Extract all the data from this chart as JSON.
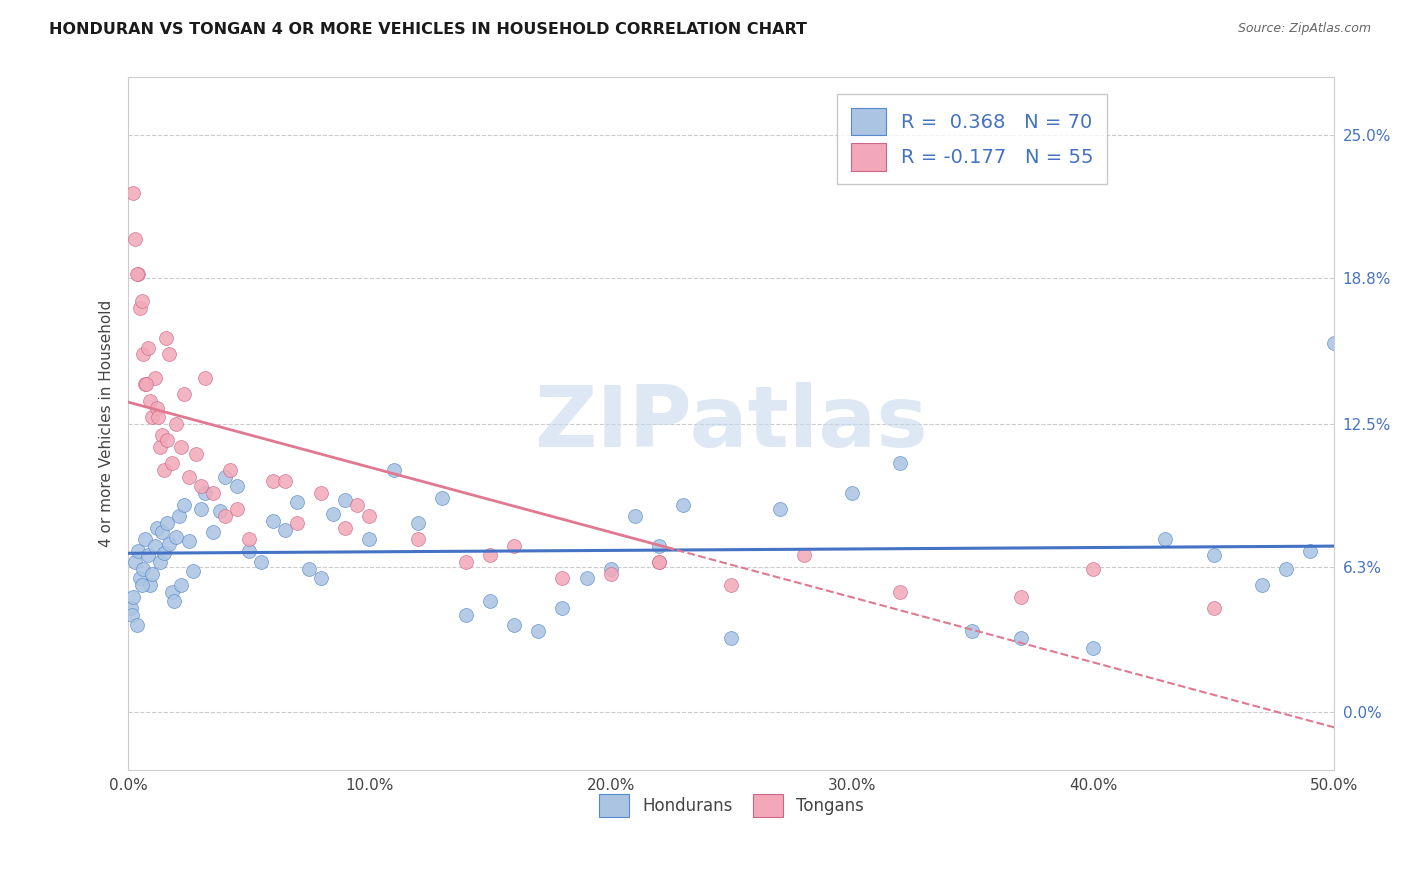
{
  "title": "HONDURAN VS TONGAN 4 OR MORE VEHICLES IN HOUSEHOLD CORRELATION CHART",
  "source": "Source: ZipAtlas.com",
  "ylabel": "4 or more Vehicles in Household",
  "xlabel_vals": [
    0.0,
    10.0,
    20.0,
    30.0,
    40.0,
    50.0
  ],
  "ylabel_vals": [
    0.0,
    6.3,
    12.5,
    18.8,
    25.0
  ],
  "ylabel_labels": [
    "0.0%",
    "6.3%",
    "12.5%",
    "18.8%",
    "25.0%"
  ],
  "xmin": 0.0,
  "xmax": 50.0,
  "ymin": -2.5,
  "ymax": 27.5,
  "honduran_color": "#aac4e2",
  "tongan_color": "#f2a8b8",
  "honduran_edge_color": "#5588cc",
  "tongan_edge_color": "#cc6688",
  "honduran_line_color": "#4472c4",
  "tongan_line_color": "#e07890",
  "background_color": "#ffffff",
  "grid_color": "#cccccc",
  "legend_text_1": "R =  0.368   N = 70",
  "legend_text_2": "R = -0.177   N = 55",
  "legend_color_1": "#4472c4",
  "legend_color_2": "#e07890",
  "watermark": "ZIPatlas",
  "watermark_color": "#c8d8ee",
  "honduran_x": [
    0.1,
    0.2,
    0.3,
    0.4,
    0.5,
    0.6,
    0.7,
    0.8,
    0.9,
    1.0,
    1.1,
    1.2,
    1.3,
    1.4,
    1.5,
    1.6,
    1.7,
    1.8,
    1.9,
    2.0,
    2.1,
    2.2,
    2.3,
    2.5,
    2.7,
    3.0,
    3.2,
    3.5,
    3.8,
    4.0,
    4.5,
    5.0,
    5.5,
    6.0,
    6.5,
    7.0,
    7.5,
    8.0,
    8.5,
    9.0,
    10.0,
    11.0,
    12.0,
    13.0,
    14.0,
    15.0,
    16.0,
    17.0,
    18.0,
    19.0,
    20.0,
    21.0,
    22.0,
    23.0,
    25.0,
    27.0,
    30.0,
    32.0,
    35.0,
    37.0,
    40.0,
    43.0,
    45.0,
    47.0,
    48.0,
    49.0,
    50.0,
    0.15,
    0.35,
    0.55
  ],
  "honduran_y": [
    4.5,
    5.0,
    6.5,
    7.0,
    5.8,
    6.2,
    7.5,
    6.8,
    5.5,
    6.0,
    7.2,
    8.0,
    6.5,
    7.8,
    6.9,
    8.2,
    7.3,
    5.2,
    4.8,
    7.6,
    8.5,
    5.5,
    9.0,
    7.4,
    6.1,
    8.8,
    9.5,
    7.8,
    8.7,
    10.2,
    9.8,
    7.0,
    6.5,
    8.3,
    7.9,
    9.1,
    6.2,
    5.8,
    8.6,
    9.2,
    7.5,
    10.5,
    8.2,
    9.3,
    4.2,
    4.8,
    3.8,
    3.5,
    4.5,
    5.8,
    6.2,
    8.5,
    7.2,
    9.0,
    3.2,
    8.8,
    9.5,
    10.8,
    3.5,
    3.2,
    2.8,
    7.5,
    6.8,
    5.5,
    6.2,
    7.0,
    16.0,
    4.2,
    3.8,
    5.5
  ],
  "tongan_x": [
    0.2,
    0.3,
    0.4,
    0.5,
    0.6,
    0.7,
    0.8,
    0.9,
    1.0,
    1.1,
    1.2,
    1.3,
    1.4,
    1.5,
    1.6,
    1.7,
    1.8,
    2.0,
    2.2,
    2.5,
    2.8,
    3.0,
    3.5,
    4.0,
    4.5,
    5.0,
    6.0,
    7.0,
    8.0,
    9.0,
    10.0,
    12.0,
    14.0,
    16.0,
    18.0,
    20.0,
    22.0,
    25.0,
    28.0,
    32.0,
    37.0,
    40.0,
    45.0,
    0.35,
    0.55,
    0.75,
    1.25,
    1.55,
    2.3,
    3.2,
    4.2,
    6.5,
    9.5,
    15.0,
    22.0
  ],
  "tongan_y": [
    22.5,
    20.5,
    19.0,
    17.5,
    15.5,
    14.2,
    15.8,
    13.5,
    12.8,
    14.5,
    13.2,
    11.5,
    12.0,
    10.5,
    11.8,
    15.5,
    10.8,
    12.5,
    11.5,
    10.2,
    11.2,
    9.8,
    9.5,
    8.5,
    8.8,
    7.5,
    10.0,
    8.2,
    9.5,
    8.0,
    8.5,
    7.5,
    6.5,
    7.2,
    5.8,
    6.0,
    6.5,
    5.5,
    6.8,
    5.2,
    5.0,
    6.2,
    4.5,
    19.0,
    17.8,
    14.2,
    12.8,
    16.2,
    13.8,
    14.5,
    10.5,
    10.0,
    9.0,
    6.8,
    6.5
  ]
}
